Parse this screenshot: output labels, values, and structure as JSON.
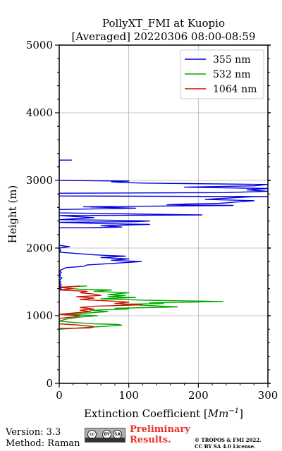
{
  "chart_data": {
    "type": "line",
    "title": "PollyXT_FMI at Kuopio",
    "subtitle": "[Averaged] 20220306 08:00-08:59",
    "xlabel": "Extinction Coefficient [",
    "xlabel_unit": "Mm",
    "xlabel_exp": "−1",
    "xlabel_end": "]",
    "ylabel": "Height (m)",
    "xlim": [
      0,
      300
    ],
    "ylim": [
      0,
      5000
    ],
    "x_ticks": [
      0,
      100,
      200,
      300
    ],
    "y_ticks": [
      0,
      1000,
      2000,
      3000,
      4000,
      5000
    ],
    "x_tick_labels": [
      "0",
      "100",
      "200",
      "300"
    ],
    "y_tick_labels": [
      "0",
      "1000",
      "2000",
      "3000",
      "4000",
      "5000"
    ],
    "grid": true,
    "legend_position": "top-right",
    "series": [
      {
        "name": "355 nm",
        "color": "#0000dd",
        "points": [
          [
            0,
            1380
          ],
          [
            3,
            1390
          ],
          [
            0,
            1400
          ],
          [
            5,
            1420
          ],
          [
            0,
            1440
          ],
          [
            3,
            1460
          ],
          [
            0,
            1480
          ],
          [
            2,
            1500
          ],
          [
            0,
            1520
          ],
          [
            4,
            1560
          ],
          [
            0,
            1580
          ],
          [
            2,
            1600
          ],
          [
            0,
            1620
          ],
          [
            3,
            1640
          ],
          [
            0,
            1660
          ],
          [
            5,
            1690
          ],
          [
            10,
            1710
          ],
          [
            35,
            1730
          ],
          [
            40,
            1750
          ],
          [
            118,
            1800
          ],
          [
            95,
            1810
          ],
          [
            75,
            1820
          ],
          [
            100,
            1840
          ],
          [
            60,
            1860
          ],
          [
            95,
            1880
          ],
          [
            70,
            1890
          ],
          [
            50,
            1900
          ],
          [
            0,
            1940
          ],
          [
            2,
            1960
          ],
          [
            0,
            2000
          ],
          [
            15,
            2020
          ],
          [
            0,
            2040
          ],
          [
            0,
            2300
          ],
          [
            40,
            2300
          ],
          [
            90,
            2310
          ],
          [
            60,
            2330
          ],
          [
            130,
            2350
          ],
          [
            65,
            2360
          ],
          [
            0,
            2380
          ],
          [
            110,
            2390
          ],
          [
            130,
            2400
          ],
          [
            75,
            2410
          ],
          [
            0,
            2420
          ],
          [
            50,
            2450
          ],
          [
            0,
            2480
          ],
          [
            205,
            2490
          ],
          [
            0,
            2520
          ],
          [
            0,
            2570
          ],
          [
            110,
            2590
          ],
          [
            35,
            2610
          ],
          [
            250,
            2630
          ],
          [
            155,
            2640
          ],
          [
            180,
            2650
          ],
          [
            230,
            2660
          ],
          [
            280,
            2700
          ],
          [
            210,
            2720
          ],
          [
            280,
            2760
          ],
          [
            300,
            2760
          ],
          [
            0,
            2770
          ],
          [
            0,
            2810
          ],
          [
            240,
            2820
          ],
          [
            300,
            2840
          ],
          [
            270,
            2860
          ],
          [
            300,
            2880
          ],
          [
            180,
            2900
          ],
          [
            280,
            2920
          ],
          [
            300,
            2940
          ],
          [
            120,
            2960
          ],
          [
            90,
            2970
          ],
          [
            75,
            2980
          ],
          [
            100,
            2990
          ],
          [
            0,
            3000
          ],
          [
            0,
            3300
          ],
          [
            18,
            3300
          ]
        ]
      },
      {
        "name": "532 nm",
        "color": "#00aa00",
        "points": [
          [
            0,
            800
          ],
          [
            60,
            840
          ],
          [
            90,
            860
          ],
          [
            85,
            870
          ],
          [
            50,
            880
          ],
          [
            20,
            900
          ],
          [
            0,
            920
          ],
          [
            10,
            950
          ],
          [
            30,
            980
          ],
          [
            55,
            1000
          ],
          [
            10,
            1020
          ],
          [
            40,
            1040
          ],
          [
            70,
            1060
          ],
          [
            45,
            1080
          ],
          [
            100,
            1100
          ],
          [
            80,
            1110
          ],
          [
            170,
            1130
          ],
          [
            130,
            1150
          ],
          [
            90,
            1170
          ],
          [
            150,
            1180
          ],
          [
            130,
            1190
          ],
          [
            235,
            1210
          ],
          [
            120,
            1230
          ],
          [
            60,
            1250
          ],
          [
            110,
            1270
          ],
          [
            70,
            1280
          ],
          [
            95,
            1300
          ],
          [
            70,
            1310
          ],
          [
            100,
            1340
          ],
          [
            50,
            1360
          ],
          [
            75,
            1380
          ],
          [
            30,
            1390
          ],
          [
            0,
            1420
          ],
          [
            40,
            1440
          ]
        ]
      },
      {
        "name": "1064 nm",
        "color": "#cc1100",
        "points": [
          [
            0,
            810
          ],
          [
            45,
            820
          ],
          [
            50,
            840
          ],
          [
            30,
            860
          ],
          [
            0,
            880
          ],
          [
            0,
            960
          ],
          [
            20,
            980
          ],
          [
            30,
            1000
          ],
          [
            0,
            1020
          ],
          [
            20,
            1040
          ],
          [
            45,
            1060
          ],
          [
            30,
            1080
          ],
          [
            50,
            1100
          ],
          [
            30,
            1120
          ],
          [
            50,
            1140
          ],
          [
            120,
            1160
          ],
          [
            80,
            1180
          ],
          [
            100,
            1200
          ],
          [
            70,
            1220
          ],
          [
            30,
            1240
          ],
          [
            50,
            1260
          ],
          [
            25,
            1280
          ],
          [
            60,
            1300
          ],
          [
            50,
            1320
          ],
          [
            30,
            1340
          ],
          [
            40,
            1360
          ],
          [
            0,
            1380
          ],
          [
            20,
            1400
          ],
          [
            0,
            1420
          ],
          [
            30,
            1440
          ]
        ]
      }
    ]
  },
  "footer": {
    "version": "Version: 3.3",
    "method": "Method: Raman",
    "preliminary_line1": "Preliminary",
    "preliminary_line2": "Results.",
    "license_line1": "© TROPOS & FMI 2022.",
    "license_line2": "CC BY SA 4.0 License.",
    "cc_label": "cc",
    "by_label": "BY",
    "sa_label": "SA"
  }
}
